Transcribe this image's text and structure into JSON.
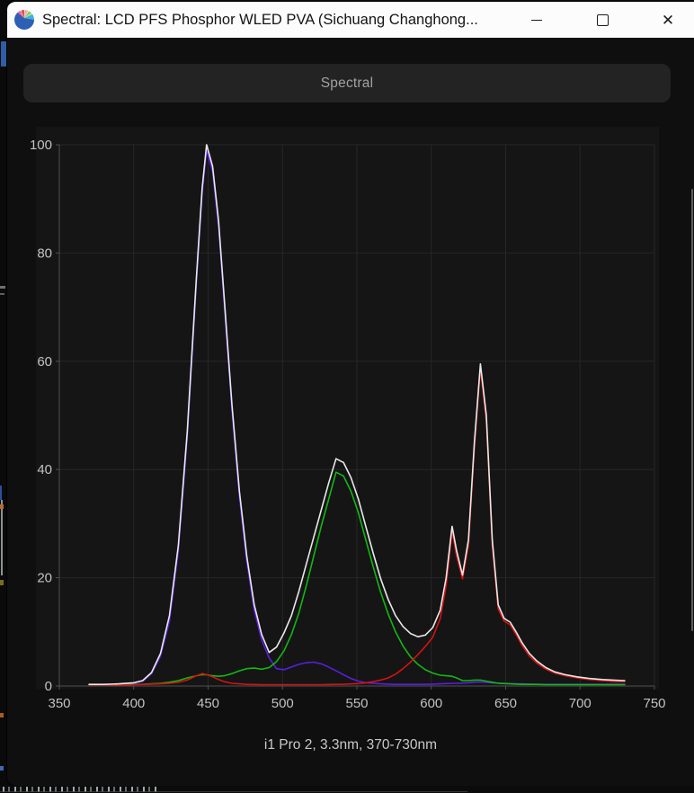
{
  "window": {
    "title": "Spectral: LCD PFS Phosphor WLED PVA (Sichuang Changhong...",
    "controls": {
      "minimize": "",
      "maximize": "",
      "close": "✕"
    }
  },
  "tab": {
    "label": "Spectral"
  },
  "caption": "i1 Pro 2, 3.3nm, 370-730nm",
  "colors": {
    "titlebar_bg": "#fcfcfc",
    "window_bg": "#0f0f0f",
    "panel_bg": "#151515",
    "grid": "#272727",
    "axis": "#505050",
    "tick_label": "#c2c2c2",
    "white_curve": "#e9e9e9",
    "blue_curve": "#5a1fe0",
    "green_curve": "#12b812",
    "red_curve": "#d51212"
  },
  "chart_data": {
    "type": "line",
    "title": "Spectral",
    "xlabel": "",
    "ylabel": "",
    "xlim": [
      350,
      750
    ],
    "ylim": [
      0,
      100
    ],
    "xticks": [
      350,
      400,
      450,
      500,
      550,
      600,
      650,
      700,
      750
    ],
    "yticks": [
      0,
      20,
      40,
      60,
      80,
      100
    ],
    "grid": true,
    "legend": "none",
    "measurement_range_nm": [
      370,
      730
    ],
    "x": [
      370,
      380,
      390,
      400,
      406,
      412,
      418,
      424,
      430,
      436,
      442,
      446,
      449,
      453,
      457,
      461,
      466,
      471,
      476,
      481,
      486,
      491,
      496,
      501,
      506,
      511,
      516,
      521,
      526,
      531,
      536,
      541,
      546,
      551,
      556,
      561,
      566,
      571,
      576,
      581,
      586,
      591,
      596,
      601,
      606,
      610,
      614,
      617,
      621,
      625,
      629,
      633,
      637,
      641,
      645,
      649,
      653,
      657,
      661,
      666,
      671,
      677,
      683,
      690,
      698,
      706,
      715,
      722,
      730
    ],
    "series": [
      {
        "name": "blue",
        "color": "#5a1fe0",
        "values": [
          0.2,
          0.2,
          0.3,
          0.5,
          0.9,
          2.3,
          5.5,
          12,
          25,
          46,
          74,
          91,
          99,
          95,
          85,
          70,
          51,
          35,
          23,
          14,
          8.5,
          5.2,
          3.2,
          3.0,
          3.5,
          4.0,
          4.3,
          4.4,
          4.1,
          3.5,
          2.8,
          2.1,
          1.4,
          0.9,
          0.6,
          0.5,
          0.4,
          0.35,
          0.3,
          0.3,
          0.3,
          0.3,
          0.3,
          0.35,
          0.4,
          0.45,
          0.5,
          0.5,
          0.55,
          0.6,
          0.7,
          0.75,
          0.7,
          0.6,
          0.55,
          0.5,
          0.45,
          0.4,
          0.4,
          0.35,
          0.3,
          0.3,
          0.3,
          0.3,
          0.3,
          0.3,
          0.3,
          0.3,
          0.3
        ]
      },
      {
        "name": "green",
        "color": "#12b812",
        "values": [
          0.2,
          0.2,
          0.2,
          0.3,
          0.3,
          0.4,
          0.5,
          0.7,
          1.0,
          1.5,
          1.9,
          2.1,
          2.1,
          1.9,
          1.8,
          1.9,
          2.3,
          2.8,
          3.2,
          3.3,
          3.1,
          3.4,
          4.5,
          6.5,
          9.5,
          13.5,
          18.5,
          24,
          29.5,
          34.5,
          39.5,
          38.8,
          36,
          32,
          27,
          22,
          17.3,
          13.3,
          10,
          7.4,
          5.4,
          4.0,
          3.0,
          2.4,
          2.0,
          1.9,
          1.8,
          1.5,
          1.0,
          1.0,
          1.1,
          1.1,
          0.9,
          0.7,
          0.5,
          0.45,
          0.4,
          0.35,
          0.3,
          0.3,
          0.3,
          0.25,
          0.25,
          0.25,
          0.25,
          0.25,
          0.25,
          0.25,
          0.25
        ]
      },
      {
        "name": "red",
        "color": "#d51212",
        "values": [
          0.2,
          0.2,
          0.2,
          0.25,
          0.3,
          0.35,
          0.4,
          0.5,
          0.7,
          1.1,
          1.9,
          2.3,
          2.1,
          1.7,
          1.2,
          0.8,
          0.5,
          0.4,
          0.3,
          0.28,
          0.25,
          0.25,
          0.25,
          0.25,
          0.25,
          0.25,
          0.25,
          0.25,
          0.25,
          0.28,
          0.3,
          0.32,
          0.38,
          0.45,
          0.6,
          0.8,
          1.1,
          1.5,
          2.2,
          3.2,
          4.4,
          5.8,
          7.3,
          9.0,
          12.5,
          18.5,
          28.7,
          24,
          19.8,
          26,
          44,
          58.8,
          49,
          26,
          14.2,
          12,
          11.3,
          9.5,
          7.5,
          5.5,
          4.2,
          3.1,
          2.4,
          1.9,
          1.5,
          1.2,
          1.0,
          0.85,
          0.8
        ]
      },
      {
        "name": "white",
        "color": "#e9e9e9",
        "values": [
          0.3,
          0.3,
          0.4,
          0.6,
          1.0,
          2.5,
          6,
          13,
          26,
          47,
          75,
          92,
          100,
          96,
          86,
          71,
          52,
          36,
          24,
          15,
          9.5,
          6.2,
          7.2,
          9.8,
          13,
          17.5,
          22.5,
          27.5,
          32.5,
          37.5,
          42,
          41.3,
          38.5,
          34.5,
          29.5,
          24.5,
          19.8,
          16,
          13,
          11,
          9.7,
          9.1,
          9.4,
          10.8,
          14,
          20,
          29.5,
          25,
          20.5,
          27,
          45,
          59.5,
          50,
          27,
          15,
          12.5,
          11.8,
          10,
          8,
          6,
          4.6,
          3.4,
          2.6,
          2.1,
          1.7,
          1.4,
          1.2,
          1.1,
          1.0
        ]
      }
    ]
  }
}
